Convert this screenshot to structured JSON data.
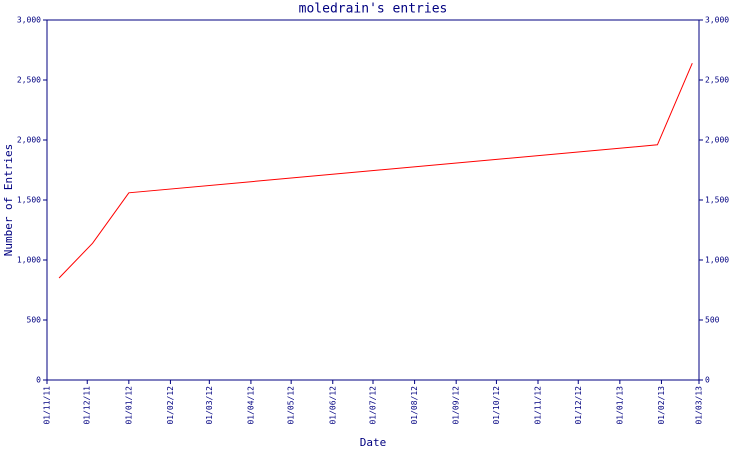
{
  "chart_data": {
    "type": "line",
    "title": "moledrain's entries",
    "x_label": "Date",
    "y_label": "Number of Entries",
    "x": [
      "2011-11-10",
      "2011-12-05",
      "2012-01-01",
      "2013-01-29",
      "2013-02-24"
    ],
    "series": [
      {
        "name": "moledrain",
        "color": "#ff0000",
        "values": [
          850,
          1140,
          1560,
          1960,
          2640
        ]
      }
    ],
    "xlim": [
      "2011-11-01",
      "2013-03-01"
    ],
    "xticks": [
      {
        "value": "2011-11-01",
        "label": "01/11/11"
      },
      {
        "value": "2011-12-01",
        "label": "01/12/11"
      },
      {
        "value": "2012-01-01",
        "label": "01/01/12"
      },
      {
        "value": "2012-02-01",
        "label": "01/02/12"
      },
      {
        "value": "2012-03-01",
        "label": "01/03/12"
      },
      {
        "value": "2012-04-01",
        "label": "01/04/12"
      },
      {
        "value": "2012-05-01",
        "label": "01/05/12"
      },
      {
        "value": "2012-06-01",
        "label": "01/06/12"
      },
      {
        "value": "2012-07-01",
        "label": "01/07/12"
      },
      {
        "value": "2012-08-01",
        "label": "01/08/12"
      },
      {
        "value": "2012-09-01",
        "label": "01/09/12"
      },
      {
        "value": "2012-10-01",
        "label": "01/10/12"
      },
      {
        "value": "2012-11-01",
        "label": "01/11/12"
      },
      {
        "value": "2012-12-01",
        "label": "01/12/12"
      },
      {
        "value": "2013-01-01",
        "label": "01/01/13"
      },
      {
        "value": "2013-02-01",
        "label": "01/02/13"
      },
      {
        "value": "2013-03-01",
        "label": "01/03/13"
      }
    ],
    "ylim": [
      0,
      3000
    ],
    "yticks": [
      0,
      500,
      {
        "value": 1000,
        "label": "1,000"
      },
      {
        "value": 1500,
        "label": "1,500"
      },
      {
        "value": 2000,
        "label": "2,000"
      },
      {
        "value": 2500,
        "label": "2,500"
      },
      {
        "value": 3000,
        "label": "3,000"
      }
    ],
    "axis_color": "#000080"
  }
}
